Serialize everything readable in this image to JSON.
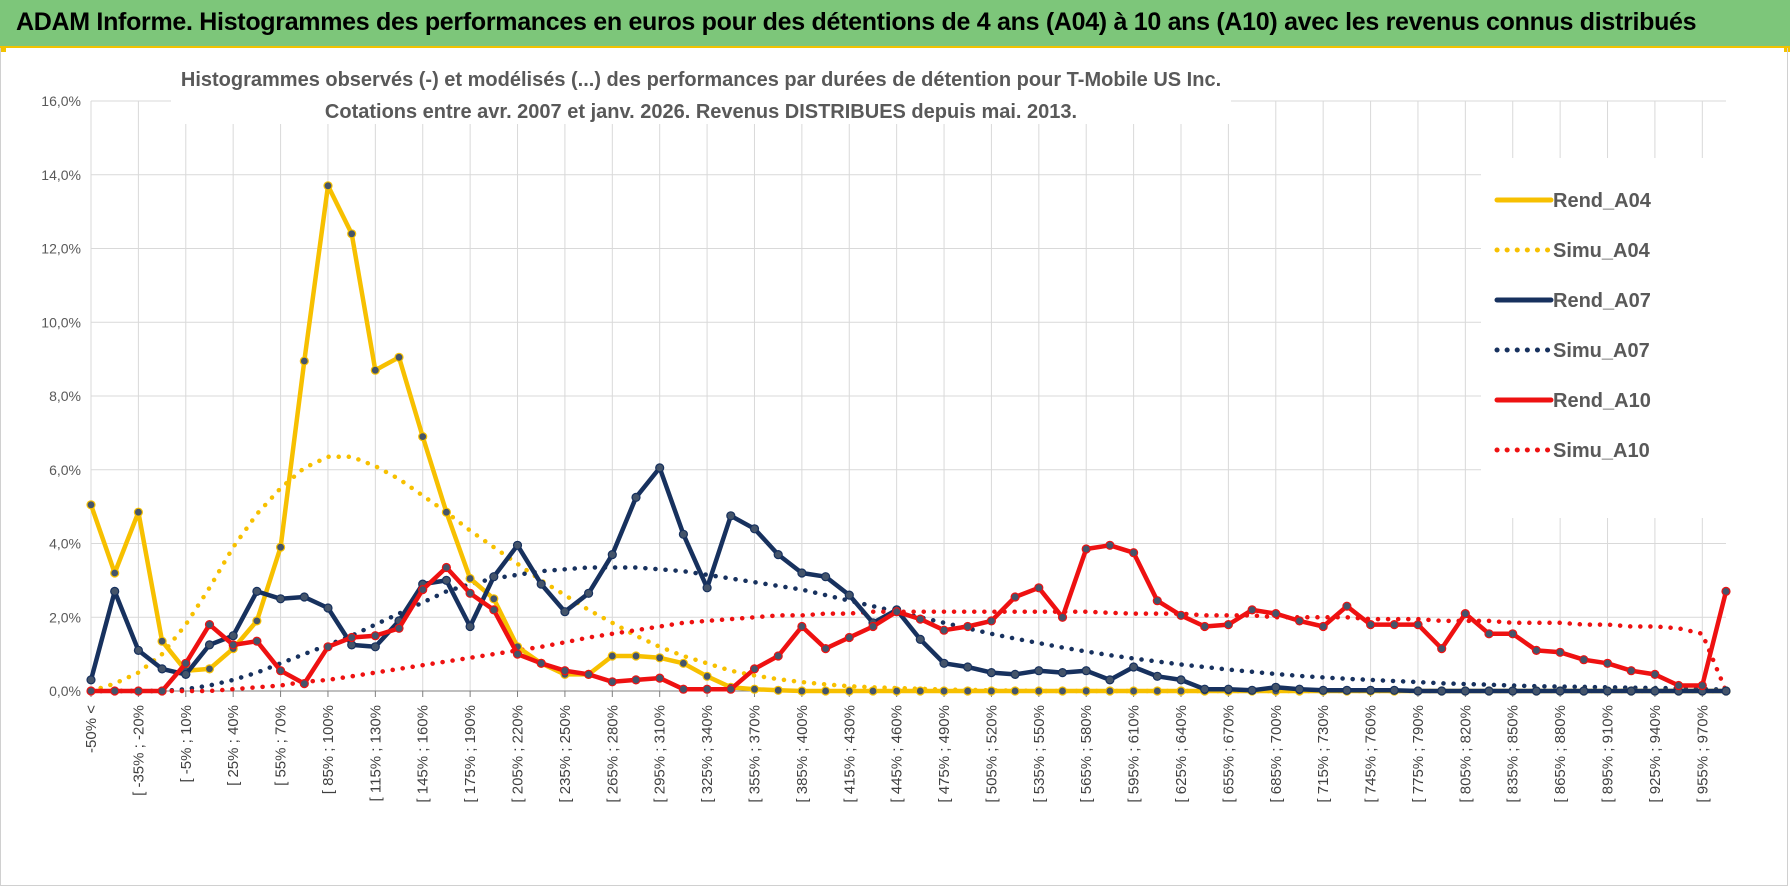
{
  "header": {
    "title": "ADAM Informe. Histogrammes des performances en euros pour des détentions de 4 ans (A04) à 10 ans (A10) avec les revenus connus distribués"
  },
  "colors": {
    "header_bg": "#7dc67a",
    "accent_yellow": "#f7c000",
    "navy": "#17315e",
    "red": "#ee1111",
    "grid": "#d9d9d9"
  },
  "chart_data": {
    "type": "line",
    "title": "Histogrammes observés (-) et modélisés (...) des performances par durées de détention pour T-Mobile US Inc.",
    "subtitle": "Cotations entre avr. 2007 et janv. 2026. Revenus DISTRIBUES depuis mai. 2013.",
    "xlabel": "",
    "ylabel": "",
    "ylim": [
      0,
      16
    ],
    "yticks": [
      "0,0%",
      "2,0%",
      "4,0%",
      "6,0%",
      "8,0%",
      "10,0%",
      "12,0%",
      "14,0%",
      "16,0%"
    ],
    "xtick_labels": [
      "-50% <",
      "[ -35% ; -20%",
      "[ -5% ; 10%",
      "[ 25% ; 40%",
      "[ 55% ; 70%",
      "[ 85% ; 100%",
      "[ 115% ; 130%",
      "[ 145% ; 160%",
      "[ 175% ; 190%",
      "[ 205% ; 220%",
      "[ 235% ; 250%",
      "[ 265% ; 280%",
      "[ 295% ; 310%",
      "[ 325% ; 340%",
      "[ 355% ; 370%",
      "[ 385% ; 400%",
      "[ 415% ; 430%",
      "[ 445% ; 460%",
      "[ 475% ; 490%",
      "[ 505% ; 520%",
      "[ 535% ; 550%",
      "[ 565% ; 580%",
      "[ 595% ; 610%",
      "[ 625% ; 640%",
      "[ 655% ; 670%",
      "[ 685% ; 700%",
      "[ 715% ; 730%",
      "[ 745% ; 760%",
      "[ 775% ; 790%",
      "[ 805% ; 820%",
      "[ 835% ; 850%",
      "[ 865% ; 880%",
      "[ 895% ; 910%",
      "[ 925% ; 940%",
      "[ 955% ; 970%"
    ],
    "xtick_step": 2,
    "n_points": 70,
    "legend_position": "top-right",
    "series": [
      {
        "name": "Rend_A04",
        "style": "solid",
        "markers": true,
        "color": "#f7c000",
        "values": [
          5.05,
          3.2,
          4.85,
          1.35,
          0.55,
          0.6,
          1.15,
          1.9,
          3.9,
          8.95,
          13.7,
          12.4,
          8.7,
          9.05,
          6.9,
          4.85,
          3.05,
          2.5,
          1.2,
          0.75,
          0.45,
          0.45,
          0.95,
          0.95,
          0.9,
          0.75,
          0.4,
          0.1,
          0.05,
          0.02,
          0,
          0,
          0,
          0,
          0,
          0,
          0,
          0,
          0,
          0,
          0,
          0,
          0,
          0,
          0,
          0,
          0,
          0,
          0,
          0,
          0,
          0,
          0,
          0,
          0,
          0,
          0,
          0,
          0,
          0,
          0,
          0,
          0,
          0,
          0,
          0,
          0,
          0,
          0,
          0
        ]
      },
      {
        "name": "Simu_A04",
        "style": "dotted",
        "markers": false,
        "color": "#f7c000",
        "values": [
          0,
          0.2,
          0.5,
          1,
          1.8,
          2.8,
          3.9,
          4.8,
          5.5,
          6.05,
          6.35,
          6.35,
          6.1,
          5.75,
          5.3,
          4.85,
          4.35,
          3.9,
          3.45,
          3,
          2.6,
          2.2,
          1.85,
          1.5,
          1.2,
          0.95,
          0.75,
          0.55,
          0.42,
          0.32,
          0.24,
          0.18,
          0.13,
          0.1,
          0.08,
          0.06,
          0.04,
          0.03,
          0.02,
          0.01,
          0,
          0,
          0,
          0,
          0,
          0,
          0,
          0,
          0,
          0,
          0,
          0,
          0,
          0,
          0,
          0,
          0,
          0,
          0,
          0,
          0,
          0,
          0,
          0,
          0,
          0,
          0,
          0,
          0,
          0
        ]
      },
      {
        "name": "Rend_A07",
        "style": "solid",
        "markers": true,
        "color": "#17315e",
        "values": [
          0.3,
          2.7,
          1.1,
          0.6,
          0.45,
          1.25,
          1.5,
          2.7,
          2.5,
          2.55,
          2.25,
          1.25,
          1.2,
          1.9,
          2.9,
          3.0,
          1.75,
          3.1,
          3.95,
          2.9,
          2.15,
          2.65,
          3.7,
          5.25,
          6.05,
          4.25,
          2.8,
          4.75,
          4.4,
          3.7,
          3.2,
          3.1,
          2.6,
          1.85,
          2.2,
          1.4,
          0.75,
          0.65,
          0.5,
          0.45,
          0.55,
          0.5,
          0.55,
          0.3,
          0.65,
          0.4,
          0.3,
          0.05,
          0.05,
          0.02,
          0.1,
          0.05,
          0.02,
          0.02,
          0.02,
          0.02,
          0,
          0,
          0,
          0,
          0,
          0,
          0,
          0,
          0,
          0,
          0,
          0,
          0,
          0
        ]
      },
      {
        "name": "Simu_A07",
        "style": "dotted",
        "markers": false,
        "color": "#17315e",
        "values": [
          0,
          0,
          0,
          0,
          0.05,
          0.15,
          0.3,
          0.5,
          0.75,
          1,
          1.25,
          1.5,
          1.8,
          2.1,
          2.4,
          2.7,
          2.9,
          3.05,
          3.15,
          3.25,
          3.3,
          3.35,
          3.35,
          3.35,
          3.3,
          3.25,
          3.15,
          3.05,
          2.95,
          2.85,
          2.75,
          2.6,
          2.45,
          2.3,
          2.15,
          2.0,
          1.85,
          1.7,
          1.55,
          1.42,
          1.3,
          1.18,
          1.07,
          0.97,
          0.88,
          0.8,
          0.72,
          0.65,
          0.58,
          0.52,
          0.46,
          0.41,
          0.37,
          0.33,
          0.3,
          0.27,
          0.24,
          0.21,
          0.19,
          0.17,
          0.15,
          0.13,
          0.12,
          0.11,
          0.1,
          0.09,
          0.08,
          0.07,
          0.05,
          0.04
        ]
      },
      {
        "name": "Rend_A10",
        "style": "solid",
        "markers": true,
        "color": "#ee1111",
        "values": [
          0,
          0,
          0,
          0,
          0.75,
          1.8,
          1.25,
          1.35,
          0.55,
          0.2,
          1.2,
          1.45,
          1.5,
          1.7,
          2.75,
          3.35,
          2.65,
          2.2,
          1.0,
          0.75,
          0.55,
          0.45,
          0.25,
          0.3,
          0.35,
          0.05,
          0.05,
          0.05,
          0.6,
          0.95,
          1.75,
          1.15,
          1.45,
          1.75,
          2.15,
          1.95,
          1.65,
          1.75,
          1.9,
          2.55,
          2.8,
          2.0,
          3.85,
          3.95,
          3.75,
          2.45,
          2.05,
          1.75,
          1.8,
          2.2,
          2.1,
          1.9,
          1.75,
          2.3,
          1.8,
          1.8,
          1.8,
          1.15,
          2.1,
          1.55,
          1.55,
          1.1,
          1.05,
          0.85,
          0.75,
          0.55,
          0.45,
          0.15,
          0.15,
          2.7
        ]
      },
      {
        "name": "Simu_A10",
        "style": "dotted",
        "markers": false,
        "color": "#ee1111",
        "values": [
          0,
          0,
          0,
          0,
          0,
          0,
          0.05,
          0.1,
          0.15,
          0.25,
          0.3,
          0.4,
          0.5,
          0.6,
          0.7,
          0.8,
          0.9,
          1.0,
          1.1,
          1.2,
          1.32,
          1.45,
          1.55,
          1.65,
          1.75,
          1.85,
          1.9,
          1.95,
          2.0,
          2.05,
          2.05,
          2.1,
          2.1,
          2.15,
          2.15,
          2.15,
          2.15,
          2.15,
          2.15,
          2.15,
          2.15,
          2.15,
          2.15,
          2.12,
          2.1,
          2.1,
          2.1,
          2.05,
          2.05,
          2.05,
          2.0,
          2.0,
          2.0,
          2.0,
          1.95,
          1.95,
          1.95,
          1.9,
          1.9,
          1.9,
          1.85,
          1.85,
          1.85,
          1.8,
          1.8,
          1.75,
          1.75,
          1.7,
          1.55,
          0
        ]
      }
    ]
  }
}
